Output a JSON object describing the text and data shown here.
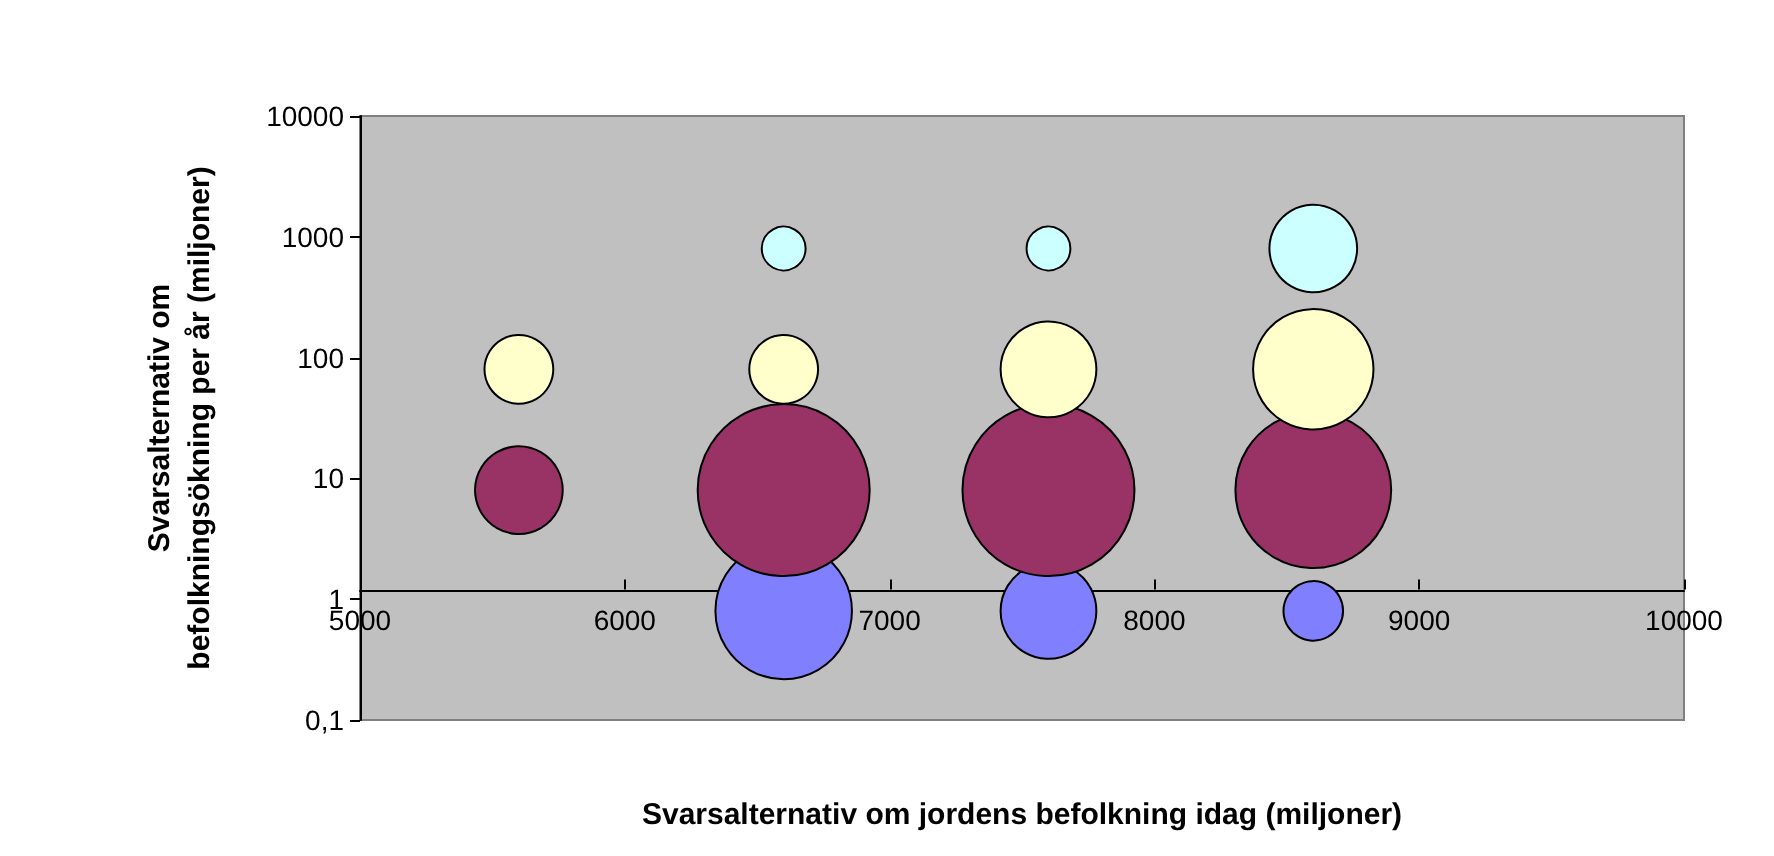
{
  "chart_data": {
    "type": "bubble",
    "xlabel": "Svarsalternativ om jordens befolkning idag (miljoner)",
    "ylabel": "Svarsalternativ om\nbefolkningsökning per år (miljoner)",
    "log": "y",
    "xlim": [
      5000,
      10000
    ],
    "xticks": [
      5000,
      6000,
      7000,
      8000,
      9000,
      10000
    ],
    "ylim": [
      0.1,
      10000
    ],
    "yticks": [
      {
        "value": 0.1,
        "label": "0,1"
      },
      1,
      10,
      100,
      1000,
      10000
    ],
    "grid": false,
    "series": [
      {
        "color": "#8080ff",
        "x": [
          6600,
          7600,
          8600
        ],
        "values": [
          0.8,
          0.8,
          0.8
        ],
        "sizes": [
          0.63,
          0.31,
          0.12
        ]
      },
      {
        "color": "#993366",
        "x": [
          5600,
          6600,
          7600,
          8600
        ],
        "values": [
          8,
          8,
          8,
          8
        ],
        "sizes": [
          0.26,
          1,
          1,
          0.82
        ]
      },
      {
        "color": "#ffffcc",
        "x": [
          5600,
          6600,
          7600,
          8600
        ],
        "values": [
          80,
          80,
          80,
          80
        ],
        "sizes": [
          0.16,
          0.16,
          0.31,
          0.49
        ]
      },
      {
        "color": "#ccffff",
        "x": [
          6600,
          7600,
          8600
        ],
        "values": [
          800,
          800,
          800
        ],
        "sizes": [
          0.065,
          0.065,
          0.26
        ]
      }
    ]
  }
}
